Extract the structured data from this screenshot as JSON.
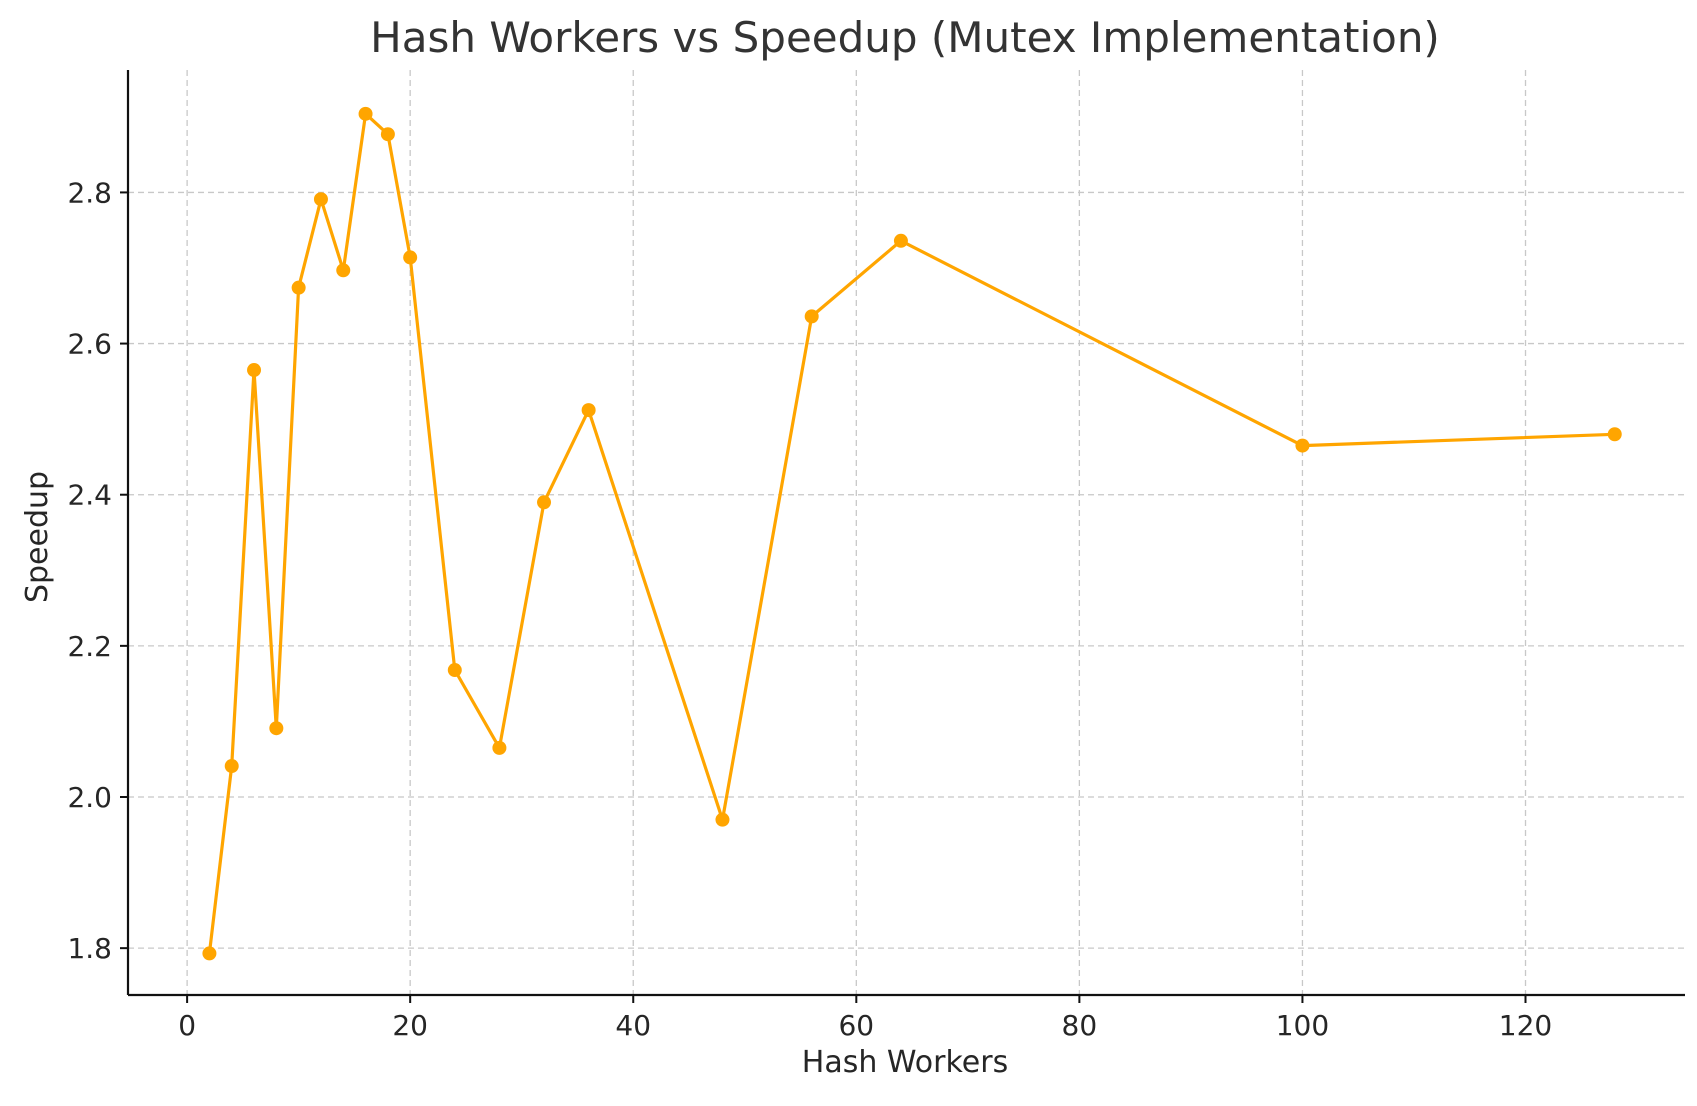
{
  "chart_data": {
    "type": "line",
    "title": "Hash Workers vs Speedup (Mutex Implementation)",
    "xlabel": "Hash Workers",
    "ylabel": "Speedup",
    "xlim": [
      -5.3,
      134.3
    ],
    "ylim": [
      1.738,
      2.962
    ],
    "xticks": [
      0,
      20,
      40,
      60,
      80,
      100,
      120
    ],
    "yticks": [
      1.8,
      2.0,
      2.2,
      2.4,
      2.6,
      2.8
    ],
    "xtick_labels": [
      "0",
      "20",
      "40",
      "60",
      "80",
      "100",
      "120"
    ],
    "ytick_labels": [
      "1.8",
      "2.0",
      "2.2",
      "2.4",
      "2.6",
      "2.8"
    ],
    "grid": true,
    "color": "#FFA500",
    "marker": "circle",
    "series": [
      {
        "x": [
          2,
          4,
          6,
          8,
          10,
          12,
          14,
          16,
          18,
          20,
          24,
          28,
          32,
          36,
          48,
          56,
          64,
          100,
          128
        ],
        "y": [
          1.793,
          2.041,
          2.565,
          2.091,
          2.674,
          2.791,
          2.697,
          2.904,
          2.877,
          2.714,
          2.168,
          2.065,
          2.39,
          2.512,
          1.97,
          2.636,
          2.736,
          2.465,
          2.48
        ]
      }
    ]
  }
}
